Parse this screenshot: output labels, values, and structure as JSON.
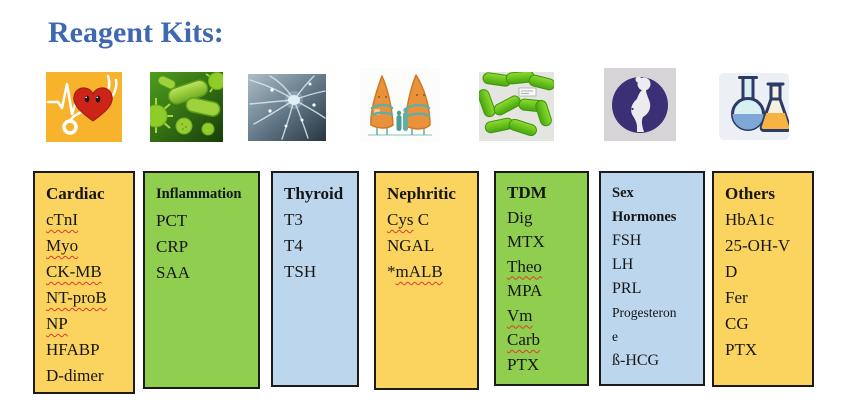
{
  "title": "Reagent Kits:",
  "colors": {
    "title": "#3E68B2",
    "yellow": "#FBD45F",
    "green": "#8FCE4E",
    "blue": "#BCD6ED",
    "box_border": "#1b1b1b",
    "squiggle": "#E03A2E"
  },
  "images": [
    {
      "name": "heart-ecg-stethoscope-image"
    },
    {
      "name": "bacteria-image"
    },
    {
      "name": "neuron-image"
    },
    {
      "name": "lungs-cartoon-image"
    },
    {
      "name": "green-capsules-image"
    },
    {
      "name": "pregnant-woman-silhouette-image"
    },
    {
      "name": "lab-flasks-image"
    }
  ],
  "kits": [
    {
      "title": "Cardiac",
      "color": "yellow",
      "items": [
        {
          "text": "cTnI",
          "squiggle": true
        },
        {
          "text": "Myo",
          "squiggle": true
        },
        {
          "text": "CK-MB",
          "squiggle": true
        },
        {
          "lines": [
            "NT-proB",
            "NP"
          ],
          "squiggle": true
        },
        {
          "text": "HFABP"
        },
        {
          "text": "D-dimer"
        }
      ]
    },
    {
      "title": "Inflammation",
      "color": "green",
      "items": [
        {
          "text": "PCT"
        },
        {
          "text": "CRP"
        },
        {
          "text": "SAA"
        }
      ]
    },
    {
      "title": "Thyroid",
      "color": "blue",
      "items": [
        {
          "text": "T3"
        },
        {
          "text": "T4"
        },
        {
          "text": "TSH"
        }
      ]
    },
    {
      "title": "Nephritic",
      "color": "yellow",
      "items": [
        {
          "text": "Cys C",
          "squiggle": "Cys"
        },
        {
          "text": "NGAL"
        },
        {
          "text": "*mALB",
          "squiggle": "mALB"
        }
      ]
    },
    {
      "title": "TDM",
      "color": "green",
      "items": [
        {
          "text": "Dig"
        },
        {
          "text": "MTX"
        },
        {
          "text": "Theo",
          "squiggle": true
        },
        {
          "text": "MPA"
        },
        {
          "text": "Vm",
          "squiggle": true
        },
        {
          "text": "Carb",
          "squiggle": true
        },
        {
          "text": "PTX"
        }
      ]
    },
    {
      "title": "Sex Hormones",
      "color": "blue",
      "items": [
        {
          "text": "FSH"
        },
        {
          "text": "LH"
        },
        {
          "text": "PRL"
        },
        {
          "lines": [
            "Progesteron",
            "e"
          ],
          "small": true
        },
        {
          "text": "ß-HCG"
        }
      ]
    },
    {
      "title": "Others",
      "color": "yellow",
      "items": [
        {
          "text": "HbA1c"
        },
        {
          "lines": [
            "25-OH-V",
            "D"
          ]
        },
        {
          "text": "Fer"
        },
        {
          "text": "CG"
        },
        {
          "text": "PTX"
        }
      ]
    }
  ]
}
